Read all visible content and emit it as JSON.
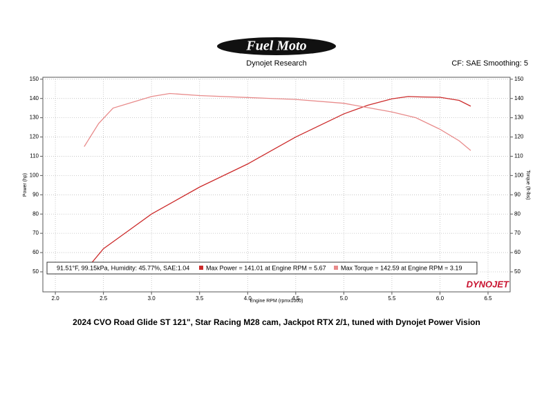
{
  "chart_data": {
    "type": "line",
    "logo": "Fuel Moto",
    "title": "Dynojet Research",
    "settings_text": "CF: SAE Smoothing: 5",
    "y_label": "Power (hp)",
    "y2_label": "Torque (ft-lbs)",
    "x_label": "Engine RPM (rpmx1000)",
    "conditions": "91.51°F, 99.15kPa, Humidity: 45.77%, SAE:1.04",
    "brand": "DYNOJET",
    "caption": "2024 CVO Road Glide ST 121\", Star Racing M28 cam, Jackpot RTX 2/1, tuned with Dynojet Power Vision",
    "grid": true,
    "xlim": [
      1.87,
      6.73
    ],
    "xticks": [
      {
        "value": 2,
        "label": "2.0"
      },
      2.5,
      {
        "value": 3,
        "label": "3.0"
      },
      3.5,
      {
        "value": 4,
        "label": "4.0"
      },
      4.5,
      {
        "value": 5,
        "label": "5.0"
      },
      5.5,
      {
        "value": 6,
        "label": "6.0"
      },
      6.5
    ],
    "ylim": [
      39.6,
      151
    ],
    "yticks": [
      50,
      60,
      70,
      80,
      90,
      100,
      110,
      120,
      130,
      140,
      150
    ],
    "y2lim": [
      39.6,
      151
    ],
    "y2ticks": [
      50,
      60,
      70,
      80,
      90,
      100,
      110,
      120,
      130,
      140,
      150
    ],
    "series": [
      {
        "name": "Max Power = 141.01 at Engine RPM = 5.67",
        "color": "#cc2a2a",
        "axis": "y",
        "x": [
          2.35,
          2.5,
          2.75,
          3.0,
          3.25,
          3.5,
          3.75,
          4.0,
          4.25,
          4.5,
          4.75,
          5.0,
          5.25,
          5.5,
          5.67,
          5.8,
          6.0,
          6.2,
          6.32
        ],
        "values": [
          53,
          62,
          71,
          80,
          87,
          94,
          100,
          106,
          113,
          120,
          126,
          132,
          136.5,
          139.8,
          141.01,
          140.8,
          140.6,
          139,
          136
        ]
      },
      {
        "name": "Max Torque = 142.59 at Engine RPM = 3.19",
        "color": "#e88a8a",
        "axis": "y2",
        "x": [
          2.3,
          2.45,
          2.6,
          2.8,
          3.0,
          3.19,
          3.5,
          4.0,
          4.5,
          5.0,
          5.5,
          5.75,
          6.0,
          6.2,
          6.32
        ],
        "values": [
          115,
          127,
          135,
          138,
          141,
          142.59,
          141.5,
          140.5,
          139.5,
          137.5,
          133,
          130,
          124,
          118,
          113
        ]
      }
    ]
  }
}
